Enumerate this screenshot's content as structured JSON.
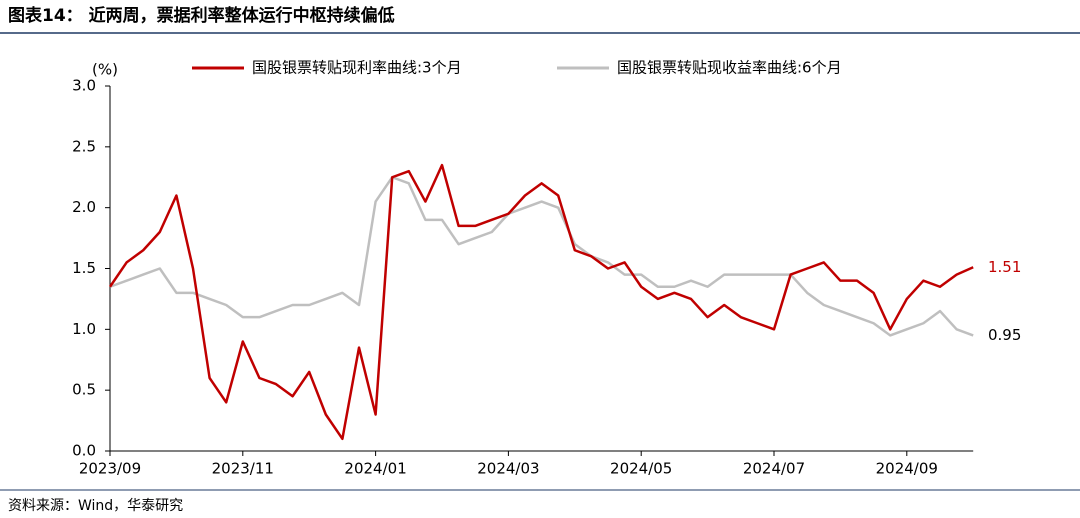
{
  "chart_data": {
    "type": "line",
    "title": "图表14： 近两周，票据利率整体运行中枢持续偏低",
    "y_unit": "(%)",
    "source": "资料来源：Wind，华泰研究",
    "categories": [
      "2023/09",
      null,
      null,
      null,
      null,
      null,
      null,
      null,
      "2023/11",
      null,
      null,
      null,
      null,
      null,
      null,
      null,
      "2024/01",
      null,
      null,
      null,
      null,
      null,
      null,
      null,
      "2024/03",
      null,
      null,
      null,
      null,
      null,
      null,
      null,
      "2024/05",
      null,
      null,
      null,
      null,
      null,
      null,
      null,
      "2024/07",
      null,
      null,
      null,
      null,
      null,
      null,
      null,
      "2024/09",
      null,
      null,
      null,
      null
    ],
    "series": [
      {
        "name": "国股银票转贴现利率曲线:3个月",
        "color": "#c00000",
        "end_label": "1.51",
        "values": [
          1.35,
          1.55,
          1.65,
          1.8,
          2.1,
          1.5,
          0.6,
          0.4,
          0.9,
          0.6,
          0.55,
          0.45,
          0.65,
          0.3,
          0.1,
          0.85,
          0.3,
          2.25,
          2.3,
          2.05,
          2.35,
          1.85,
          1.85,
          1.9,
          1.95,
          2.1,
          2.2,
          2.1,
          1.65,
          1.6,
          1.5,
          1.55,
          1.35,
          1.25,
          1.3,
          1.25,
          1.1,
          1.2,
          1.1,
          1.05,
          1.0,
          1.45,
          1.5,
          1.55,
          1.4,
          1.4,
          1.3,
          1.0,
          1.25,
          1.4,
          1.35,
          1.45,
          1.51
        ]
      },
      {
        "name": "国股银票转贴现收益率曲线:6个月",
        "color": "#bfbfbf",
        "end_label": "0.95",
        "values": [
          1.35,
          1.4,
          1.45,
          1.5,
          1.3,
          1.3,
          1.25,
          1.2,
          1.1,
          1.1,
          1.15,
          1.2,
          1.2,
          1.25,
          1.3,
          1.2,
          2.05,
          2.25,
          2.2,
          1.9,
          1.9,
          1.7,
          1.75,
          1.8,
          1.95,
          2.0,
          2.05,
          2.0,
          1.7,
          1.6,
          1.55,
          1.45,
          1.45,
          1.35,
          1.35,
          1.4,
          1.35,
          1.45,
          1.45,
          1.45,
          1.45,
          1.45,
          1.3,
          1.2,
          1.15,
          1.1,
          1.05,
          0.95,
          1.0,
          1.05,
          1.15,
          1.0,
          0.95
        ]
      }
    ],
    "ylim": [
      0,
      3
    ],
    "yticks": [
      {
        "value": 0,
        "label": "0.0"
      },
      0.5,
      {
        "value": 1,
        "label": "1.0"
      },
      1.5,
      {
        "value": 2,
        "label": "2.0"
      },
      2.5,
      {
        "value": 3,
        "label": "3.0"
      }
    ],
    "legend": "top"
  }
}
